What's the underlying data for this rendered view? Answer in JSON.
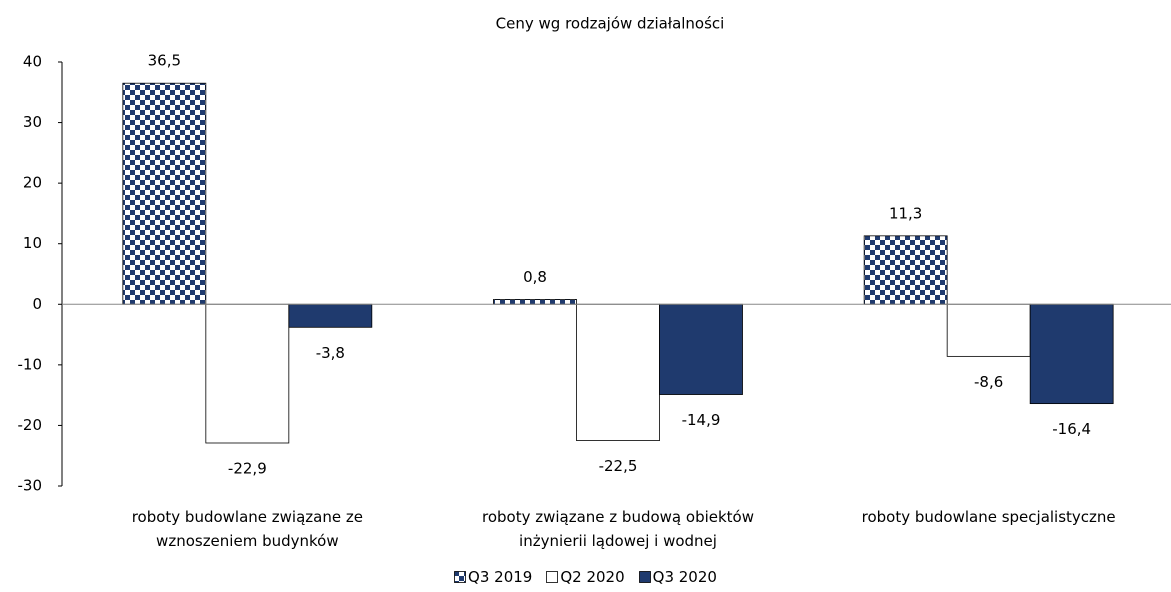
{
  "chart_data": {
    "type": "bar",
    "title": "Ceny wg rodzajów działalności",
    "categories": [
      "roboty budowlane związane ze wznoszeniem budynków",
      "roboty związane z budową obiektów inżynierii lądowej i wodnej",
      "roboty budowlane specjalistyczne"
    ],
    "series": [
      {
        "name": "Q3 2019",
        "color": "#1f3a6e",
        "pattern": "checkerboard",
        "values": [
          36.5,
          0.8,
          11.3
        ],
        "value_labels": [
          "36,5",
          "0,8",
          "11,3"
        ]
      },
      {
        "name": "Q2 2020",
        "color": "#ffffff",
        "values": [
          -22.9,
          -22.5,
          -8.6
        ],
        "value_labels": [
          "-22,9",
          "-22,5",
          "-8,6"
        ]
      },
      {
        "name": "Q3 2020",
        "color": "#1f3a6e",
        "values": [
          -3.8,
          -14.9,
          -16.4
        ],
        "value_labels": [
          "-3,8",
          "-14,9",
          "-16,4"
        ]
      }
    ],
    "ylim": [
      -30,
      40
    ],
    "yticks": [
      -30,
      -20,
      -10,
      0,
      10,
      20,
      30,
      40
    ],
    "grid": false,
    "legend": "bottom"
  }
}
